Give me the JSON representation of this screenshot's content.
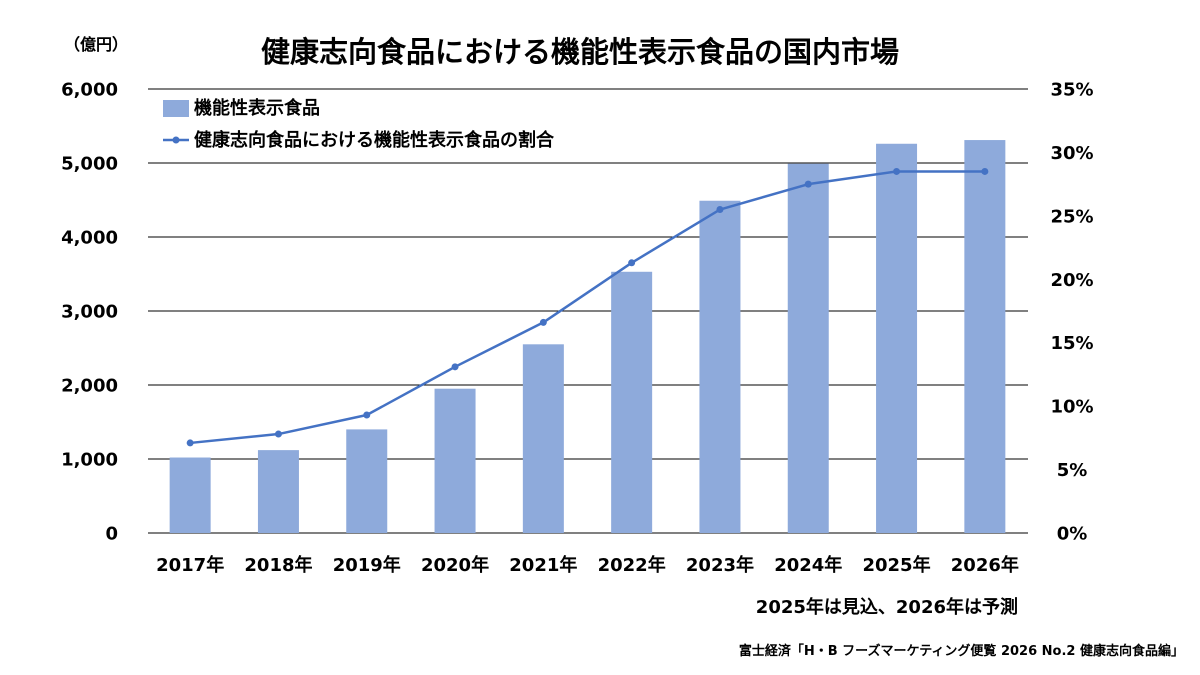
{
  "chart_data": {
    "type": "bar",
    "title": "健康志向食品における機能性表示食品の国内市場",
    "ylabel": "（億円）",
    "categories": [
      "2017年",
      "2018年",
      "2019年",
      "2020年",
      "2021年",
      "2022年",
      "2023年",
      "2024年",
      "2025年",
      "2026年"
    ],
    "series": [
      {
        "name": "機能性表示食品",
        "type": "bar",
        "axis": "left",
        "color": "#8eaadb",
        "values": [
          1020,
          1120,
          1400,
          1950,
          2550,
          3530,
          4490,
          4990,
          5260,
          5310
        ]
      },
      {
        "name": "健康志向食品における機能性表示食品の割合",
        "type": "line",
        "axis": "right",
        "color": "#4472c4",
        "values": [
          7.1,
          7.8,
          9.3,
          13.1,
          16.6,
          21.3,
          25.5,
          27.5,
          28.5,
          28.5
        ]
      }
    ],
    "ylim": [
      0,
      6000
    ],
    "yticks": [
      "0",
      "1,000",
      "2,000",
      "3,000",
      "4,000",
      "5,000",
      "6,000"
    ],
    "y2lim": [
      0,
      35
    ],
    "y2ticks": [
      "0%",
      "5%",
      "10%",
      "15%",
      "20%",
      "25%",
      "30%",
      "35%"
    ],
    "grid": true,
    "legend": "top-left",
    "note": "2025年は見込、2026年は予測",
    "source": "富士経済「H・B フーズマーケティング便覧 2026 No.2 健康志向食品編」"
  }
}
